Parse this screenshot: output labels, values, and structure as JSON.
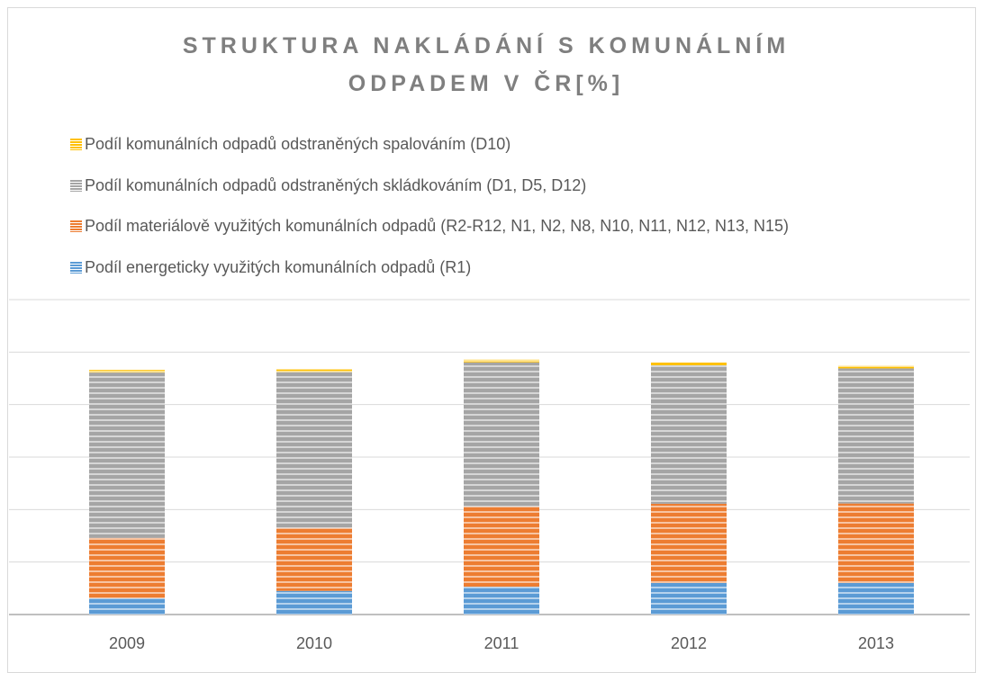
{
  "chart_data": {
    "type": "stacked_bar",
    "title": "STRUKTURA NAKLÁDÁNÍ S KOMUNÁLNÍM ODPADEM V ČR[%]",
    "categories": [
      "2009",
      "2010",
      "2011",
      "2012",
      "2013"
    ],
    "series": [
      {
        "name": "Podíl energeticky využitých komunálních odpadů (R1)",
        "color": "#5b9bd5",
        "values": [
          6.2,
          9,
          10.6,
          12,
          12
        ]
      },
      {
        "name": "Podíl materiálově využitých komunálních odpadů (R2-R12, N1, N2, N8, N10, N11, N12, N13, N15)",
        "color": "#ed7d31",
        "values": [
          23,
          24,
          30.5,
          30.2,
          30.3
        ]
      },
      {
        "name": "Podíl komunálních odpadů odstraněných skládkováním (D1, D5, D12)",
        "color": "#a5a5a5",
        "values": [
          63,
          59.4,
          55,
          52.8,
          51.5
        ]
      },
      {
        "name": "Podíl komunálních odpadů odstraněných spalováním (D10)",
        "color": "#ffc000",
        "values": [
          1,
          1,
          1,
          1,
          1
        ]
      }
    ],
    "ylim": [
      0,
      120
    ],
    "yticks": [
      0,
      20,
      40,
      60,
      80,
      100,
      120
    ],
    "grid": true,
    "legend": "top-left"
  }
}
